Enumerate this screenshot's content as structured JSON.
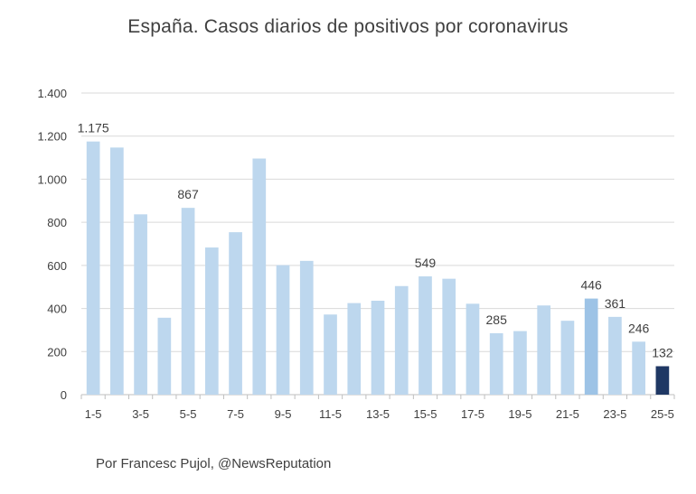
{
  "chart_data": {
    "type": "bar",
    "title": "España. Casos diarios de positivos por coronavirus",
    "xlabel": "",
    "ylabel": "",
    "categories": [
      "1-5",
      "2-5",
      "3-5",
      "4-5",
      "5-5",
      "6-5",
      "7-5",
      "8-5",
      "9-5",
      "10-5",
      "11-5",
      "12-5",
      "13-5",
      "14-5",
      "15-5",
      "16-5",
      "17-5",
      "18-5",
      "19-5",
      "20-5",
      "21-5",
      "22-5",
      "23-5",
      "24-5",
      "25-5"
    ],
    "x_tick_labels": [
      "1-5",
      "",
      "3-5",
      "",
      "5-5",
      "",
      "7-5",
      "",
      "9-5",
      "",
      "11-5",
      "",
      "13-5",
      "",
      "15-5",
      "",
      "17-5",
      "",
      "19-5",
      "",
      "21-5",
      "",
      "23-5",
      "",
      "25-5"
    ],
    "values": [
      1175,
      1147,
      837,
      357,
      867,
      683,
      754,
      1096,
      601,
      621,
      372,
      425,
      436,
      504,
      549,
      538,
      422,
      285,
      295,
      414,
      343,
      446,
      361,
      246,
      132
    ],
    "data_labels": [
      "1.175",
      "",
      "",
      "",
      "867",
      "",
      "",
      "",
      "",
      "",
      "",
      "",
      "",
      "",
      "549",
      "",
      "",
      "285",
      "",
      "",
      "",
      "446",
      "361",
      "246",
      "132"
    ],
    "ylim": [
      0,
      1400
    ],
    "y_ticks": [
      0,
      200,
      400,
      600,
      800,
      1000,
      1200,
      1400
    ],
    "y_tick_labels": [
      "0",
      "200",
      "400",
      "600",
      "800",
      "1.000",
      "1.200",
      "1.400"
    ],
    "grid": true,
    "legend": "none",
    "colors": {
      "default": "#bdd7ee",
      "highlight": "#9dc3e6",
      "latest": "#1f3864"
    },
    "bar_colors": [
      "default",
      "default",
      "default",
      "default",
      "default",
      "default",
      "default",
      "default",
      "default",
      "default",
      "default",
      "default",
      "default",
      "default",
      "default",
      "default",
      "default",
      "default",
      "default",
      "default",
      "default",
      "highlight",
      "default",
      "default",
      "latest"
    ],
    "credit": "Por Francesc Pujol, @NewsReputation"
  }
}
